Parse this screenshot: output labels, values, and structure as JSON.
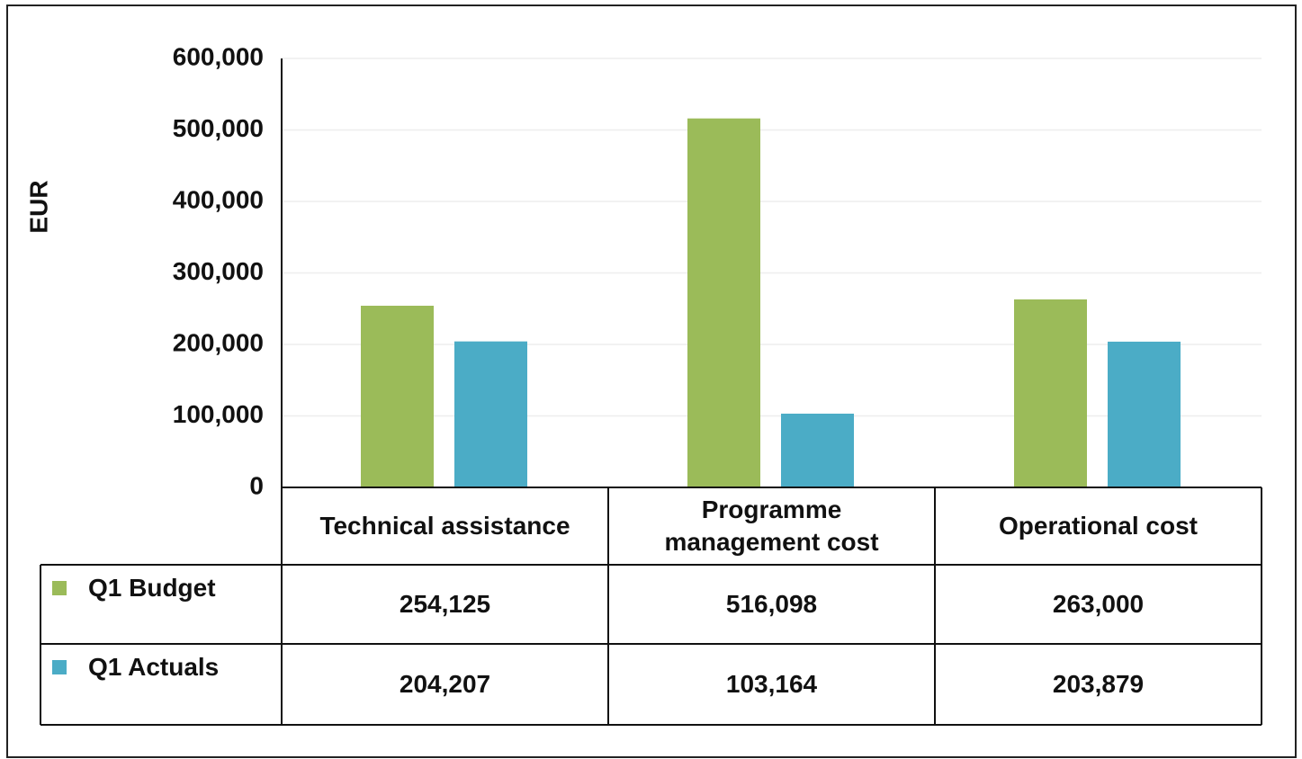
{
  "chart_data": {
    "type": "bar",
    "y_label": "EUR",
    "categories": [
      "Technical assistance",
      "Programme management cost",
      "Operational cost"
    ],
    "series": [
      {
        "name": "Q1 Budget",
        "color": "#9bbb59",
        "values": [
          254125,
          516098,
          263000
        ],
        "value_labels": [
          "254,125",
          "516,098",
          "263,000"
        ]
      },
      {
        "name": "Q1 Actuals",
        "color": "#4bacc6",
        "values": [
          204207,
          103164,
          203879
        ],
        "value_labels": [
          "204,207",
          "103,164",
          "203,879"
        ]
      }
    ],
    "ylim": [
      0,
      600000
    ],
    "yticks": [
      0,
      {
        "value": 100000,
        "label": "100,000"
      },
      {
        "value": 200000,
        "label": "200,000"
      },
      {
        "value": 300000,
        "label": "300,000"
      },
      {
        "value": 400000,
        "label": "400,000"
      },
      {
        "value": 500000,
        "label": "500,000"
      },
      {
        "value": 600000,
        "label": "600,000"
      }
    ],
    "grid": true
  }
}
